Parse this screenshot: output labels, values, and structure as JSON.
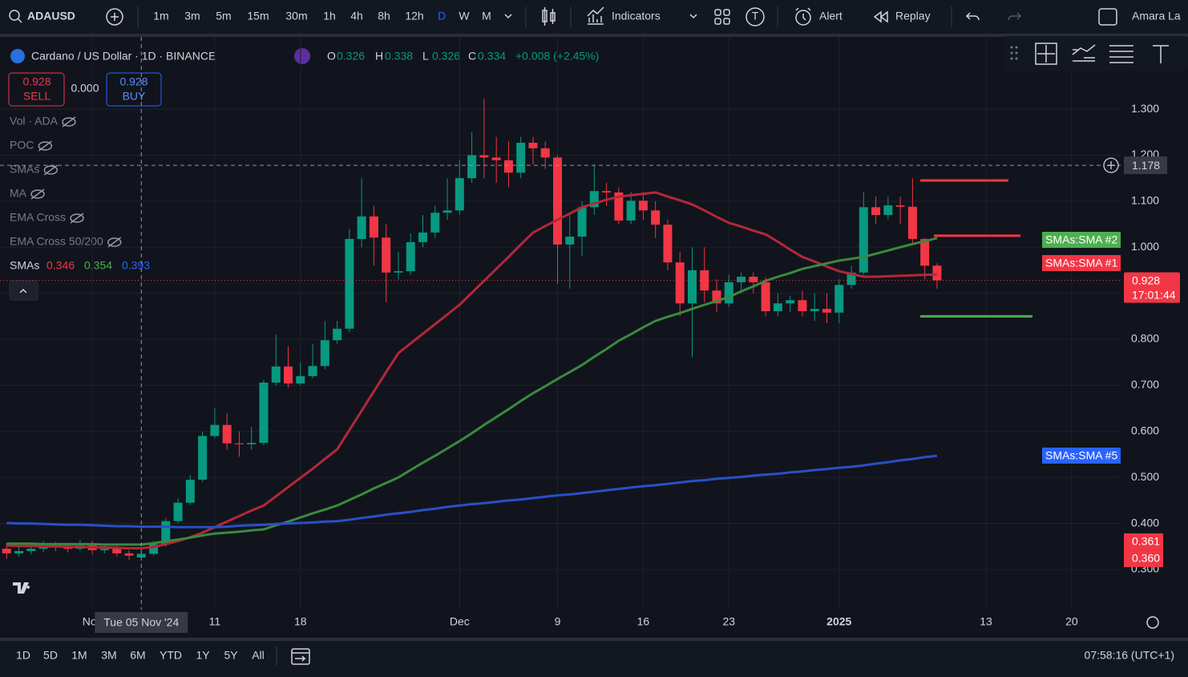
{
  "toolbar": {
    "symbol": "ADAUSD",
    "intervals": [
      "1m",
      "3m",
      "5m",
      "15m",
      "30m",
      "1h",
      "4h",
      "8h",
      "12h",
      "D",
      "W",
      "M"
    ],
    "active_interval": "D",
    "indicators_button": "Indicators",
    "alert_button": "Alert",
    "replay_button": "Replay",
    "user": "Amara La"
  },
  "legend": {
    "title": "Cardano / US Dollar · 1D · BINANCE",
    "ohlc_labels": [
      "O",
      "H",
      "L",
      "C"
    ],
    "change": "+0.008 (+2.45%)",
    "indicators": [
      "Vol · ADA",
      "POC",
      "SMAs",
      "MA",
      "EMA Cross",
      "EMA Cross 50/200"
    ],
    "sma_title": "SMAs"
  },
  "trade": {
    "sell_price": 0.928,
    "sell_label": "SELL",
    "spread": "0.000",
    "buy_price": 0.928,
    "buy_label": "BUY"
  },
  "chart_data": {
    "type": "candlestick",
    "x": [
      "2024-10-25",
      "2024-10-26",
      "2024-10-27",
      "2024-10-28",
      "2024-10-29",
      "2024-10-30",
      "2024-10-31",
      "2024-11-01",
      "2024-11-02",
      "2024-11-03",
      "2024-11-04",
      "2024-11-05",
      "2024-11-06",
      "2024-11-07",
      "2024-11-08",
      "2024-11-09",
      "2024-11-10",
      "2024-11-11",
      "2024-11-12",
      "2024-11-13",
      "2024-11-14",
      "2024-11-15",
      "2024-11-16",
      "2024-11-17",
      "2024-11-18",
      "2024-11-19",
      "2024-11-20",
      "2024-11-21",
      "2024-11-22",
      "2024-11-23",
      "2024-11-24",
      "2024-11-25",
      "2024-11-26",
      "2024-11-27",
      "2024-11-28",
      "2024-11-29",
      "2024-11-30",
      "2024-12-01",
      "2024-12-02",
      "2024-12-03",
      "2024-12-04",
      "2024-12-05",
      "2024-12-06",
      "2024-12-07",
      "2024-12-08",
      "2024-12-09",
      "2024-12-10",
      "2024-12-11",
      "2024-12-12",
      "2024-12-13",
      "2024-12-14",
      "2024-12-15",
      "2024-12-16",
      "2024-12-17",
      "2024-12-18",
      "2024-12-19",
      "2024-12-20",
      "2024-12-21",
      "2024-12-22",
      "2024-12-23",
      "2024-12-24",
      "2024-12-25",
      "2024-12-26",
      "2024-12-27",
      "2024-12-28",
      "2024-12-29",
      "2024-12-30",
      "2024-12-31",
      "2025-01-01",
      "2025-01-02",
      "2025-01-03",
      "2025-01-04",
      "2025-01-05",
      "2025-01-06",
      "2025-01-07",
      "2025-01-08",
      "2025-01-09"
    ],
    "open": [
      0.345,
      0.335,
      0.34,
      0.345,
      0.35,
      0.348,
      0.345,
      0.352,
      0.342,
      0.345,
      0.335,
      0.326,
      0.334,
      0.355,
      0.405,
      0.445,
      0.495,
      0.59,
      0.614,
      0.574,
      0.572,
      0.575,
      0.706,
      0.741,
      0.704,
      0.72,
      0.742,
      0.798,
      0.823,
      1.018,
      1.067,
      1.021,
      0.945,
      0.948,
      1.011,
      1.032,
      1.075,
      1.08,
      1.15,
      1.2,
      1.195,
      1.189,
      1.162,
      1.227,
      1.215,
      1.195,
      1.006,
      1.023,
      1.087,
      1.122,
      1.119,
      1.058,
      1.101,
      1.08,
      1.049,
      0.967,
      0.878,
      0.95,
      0.906,
      0.878,
      0.924,
      0.936,
      0.924,
      0.861,
      0.878,
      0.885,
      0.861,
      0.866,
      0.858,
      0.918,
      0.945,
      1.087,
      1.07,
      1.091,
      1.088,
      1.018,
      0.96
    ],
    "high": [
      0.357,
      0.352,
      0.357,
      0.362,
      0.36,
      0.358,
      0.364,
      0.362,
      0.356,
      0.352,
      0.342,
      0.338,
      0.362,
      0.412,
      0.455,
      0.505,
      0.6,
      0.65,
      0.64,
      0.6,
      0.61,
      0.712,
      0.81,
      0.785,
      0.75,
      0.79,
      0.84,
      0.84,
      1.04,
      1.15,
      1.09,
      1.05,
      0.99,
      1.03,
      1.07,
      1.09,
      1.15,
      1.19,
      1.25,
      1.323,
      1.24,
      1.23,
      1.24,
      1.24,
      1.23,
      1.2,
      1.07,
      1.1,
      1.18,
      1.14,
      1.13,
      1.12,
      1.12,
      1.1,
      1.06,
      0.99,
      1.0,
      1.0,
      0.93,
      0.94,
      0.945,
      0.945,
      0.935,
      0.9,
      0.895,
      0.905,
      0.9,
      0.9,
      0.93,
      0.96,
      1.12,
      1.11,
      1.11,
      1.11,
      1.15,
      1.02,
      0.965
    ],
    "low": [
      0.323,
      0.328,
      0.333,
      0.338,
      0.34,
      0.337,
      0.34,
      0.333,
      0.335,
      0.328,
      0.32,
      0.326,
      0.33,
      0.35,
      0.4,
      0.44,
      0.49,
      0.585,
      0.56,
      0.545,
      0.56,
      0.57,
      0.7,
      0.695,
      0.7,
      0.715,
      0.735,
      0.79,
      0.815,
      1.0,
      0.96,
      0.88,
      0.93,
      0.94,
      1.0,
      1.02,
      1.06,
      1.07,
      1.14,
      1.15,
      1.14,
      1.13,
      1.15,
      1.18,
      1.17,
      0.92,
      0.91,
      0.98,
      1.07,
      1.09,
      1.05,
      1.05,
      1.06,
      1.02,
      0.95,
      0.85,
      0.762,
      0.88,
      0.86,
      0.87,
      0.9,
      0.9,
      0.85,
      0.85,
      0.86,
      0.85,
      0.84,
      0.835,
      0.835,
      0.91,
      0.94,
      1.05,
      1.06,
      1.05,
      1.01,
      0.93,
      0.91
    ],
    "close": [
      0.335,
      0.34,
      0.345,
      0.35,
      0.348,
      0.345,
      0.352,
      0.342,
      0.345,
      0.335,
      0.33,
      0.334,
      0.355,
      0.405,
      0.445,
      0.495,
      0.59,
      0.614,
      0.574,
      0.572,
      0.575,
      0.706,
      0.741,
      0.704,
      0.72,
      0.742,
      0.798,
      0.823,
      1.018,
      1.067,
      1.021,
      0.945,
      0.948,
      1.011,
      1.032,
      1.075,
      1.08,
      1.15,
      1.2,
      1.195,
      1.189,
      1.162,
      1.227,
      1.215,
      1.195,
      1.006,
      1.023,
      1.087,
      1.122,
      1.119,
      1.058,
      1.101,
      1.08,
      1.049,
      0.967,
      0.878,
      0.95,
      0.906,
      0.878,
      0.924,
      0.936,
      0.924,
      0.861,
      0.878,
      0.885,
      0.861,
      0.866,
      0.858,
      0.918,
      0.945,
      1.087,
      1.07,
      1.091,
      1.088,
      1.018,
      0.96,
      0.928
    ],
    "up_color": "#089981",
    "down_color": "#f23645",
    "series": [
      {
        "name": "SMAs:SMA #1",
        "color": "#b2283a",
        "label_color": "#f23645",
        "values": [
          0.352,
          0.351,
          0.351,
          0.35,
          0.35,
          0.349,
          0.349,
          0.348,
          0.348,
          0.347,
          0.346,
          0.346,
          0.349,
          0.355,
          0.362,
          0.37,
          0.38,
          0.392,
          0.404,
          0.416,
          0.428,
          0.439,
          0.459,
          0.479,
          0.499,
          0.519,
          0.54,
          0.561,
          0.603,
          0.645,
          0.687,
          0.729,
          0.77,
          0.791,
          0.812,
          0.833,
          0.854,
          0.875,
          0.901,
          0.927,
          0.953,
          0.979,
          1.006,
          1.032,
          1.046,
          1.06,
          1.073,
          1.087,
          1.095,
          1.103,
          1.11,
          1.113,
          1.116,
          1.119,
          1.11,
          1.102,
          1.093,
          1.08,
          1.066,
          1.053,
          1.045,
          1.036,
          1.028,
          1.012,
          0.995,
          0.979,
          0.969,
          0.958,
          0.948,
          0.942,
          0.936,
          0.936,
          0.937,
          0.938,
          0.939,
          0.94,
          0.941
        ]
      },
      {
        "name": "SMAs:SMA #2",
        "color": "#3a8a3f",
        "label_color": "#4caf50",
        "values": [
          0.356,
          0.356,
          0.356,
          0.355,
          0.355,
          0.355,
          0.355,
          0.355,
          0.354,
          0.354,
          0.354,
          0.354,
          0.357,
          0.361,
          0.365,
          0.369,
          0.374,
          0.378,
          0.38,
          0.382,
          0.385,
          0.387,
          0.396,
          0.404,
          0.413,
          0.422,
          0.43,
          0.439,
          0.451,
          0.463,
          0.476,
          0.488,
          0.5,
          0.516,
          0.532,
          0.547,
          0.563,
          0.579,
          0.596,
          0.614,
          0.631,
          0.648,
          0.666,
          0.683,
          0.698,
          0.714,
          0.729,
          0.744,
          0.762,
          0.779,
          0.797,
          0.811,
          0.826,
          0.84,
          0.849,
          0.857,
          0.866,
          0.875,
          0.883,
          0.892,
          0.904,
          0.915,
          0.927,
          0.936,
          0.944,
          0.953,
          0.959,
          0.965,
          0.971,
          0.975,
          0.979,
          0.986,
          0.993,
          1.0,
          1.007,
          1.013,
          1.02
        ]
      },
      {
        "name": "SMAs:SMA #5",
        "color": "#2a4fc6",
        "label_color": "#2962ff",
        "values": [
          0.401,
          0.4,
          0.4,
          0.399,
          0.398,
          0.397,
          0.397,
          0.396,
          0.395,
          0.394,
          0.394,
          0.393,
          0.393,
          0.393,
          0.392,
          0.392,
          0.392,
          0.392,
          0.393,
          0.395,
          0.396,
          0.397,
          0.399,
          0.4,
          0.401,
          0.402,
          0.404,
          0.405,
          0.408,
          0.412,
          0.415,
          0.419,
          0.422,
          0.425,
          0.429,
          0.432,
          0.436,
          0.439,
          0.442,
          0.444,
          0.447,
          0.45,
          0.452,
          0.455,
          0.458,
          0.461,
          0.463,
          0.466,
          0.469,
          0.472,
          0.475,
          0.478,
          0.481,
          0.483,
          0.486,
          0.489,
          0.492,
          0.494,
          0.497,
          0.499,
          0.501,
          0.504,
          0.506,
          0.508,
          0.511,
          0.513,
          0.516,
          0.518,
          0.521,
          0.523,
          0.526,
          0.53,
          0.533,
          0.537,
          0.54,
          0.544,
          0.547
        ]
      }
    ],
    "hlines": [
      {
        "value": 1.145,
        "color": "#f23645"
      },
      {
        "value": 1.025,
        "color": "#f23645"
      },
      {
        "value": 0.85,
        "color": "#4caf50"
      }
    ],
    "xlim": [
      "2024-10-24",
      "2025-01-24"
    ],
    "xticks": [
      {
        "value": "2024-11-01",
        "label": "Nov"
      },
      {
        "value": "2024-11-11",
        "label": "11"
      },
      {
        "value": "2024-11-18",
        "label": "18"
      },
      {
        "value": "2024-12-01",
        "label": "Dec"
      },
      {
        "value": "2024-12-09",
        "label": "9"
      },
      {
        "value": "2024-12-16",
        "label": "16"
      },
      {
        "value": "2024-12-23",
        "label": "23"
      },
      {
        "value": "2025-01-01",
        "label": "2025"
      },
      {
        "value": "2025-01-13",
        "label": "13"
      },
      {
        "value": "2025-01-20",
        "label": "20"
      }
    ],
    "ylim": [
      0.157,
      1.45
    ],
    "yticks": [
      {
        "value": 0.3,
        "label": "0.300"
      },
      {
        "value": 0.4,
        "label": "0.400"
      },
      {
        "value": 0.5,
        "label": "0.500"
      },
      {
        "value": 0.6,
        "label": "0.600"
      },
      {
        "value": 0.7,
        "label": "0.700"
      },
      {
        "value": 0.8,
        "label": "0.800"
      },
      {
        "value": 0.9,
        "label": "0.900"
      },
      {
        "value": 1.0,
        "label": "1.000"
      },
      {
        "value": 1.1,
        "label": "1.100"
      },
      {
        "value": 1.2,
        "label": "1.200"
      },
      {
        "value": 1.3,
        "label": "1.300"
      }
    ],
    "grid": true,
    "crosshair_date_label": "Tue 05 Nov '24",
    "crosshair_price": 1.178,
    "countdown": "17:01:44",
    "price_badges": [
      0.361,
      0.36
    ],
    "price_badge_labels": [
      "0.361",
      "0.360"
    ]
  },
  "bottom_bar": {
    "ranges": [
      "1D",
      "5D",
      "1M",
      "3M",
      "6M",
      "YTD",
      "1Y",
      "5Y",
      "All"
    ],
    "clock": "07:58:16 (UTC+1)"
  }
}
